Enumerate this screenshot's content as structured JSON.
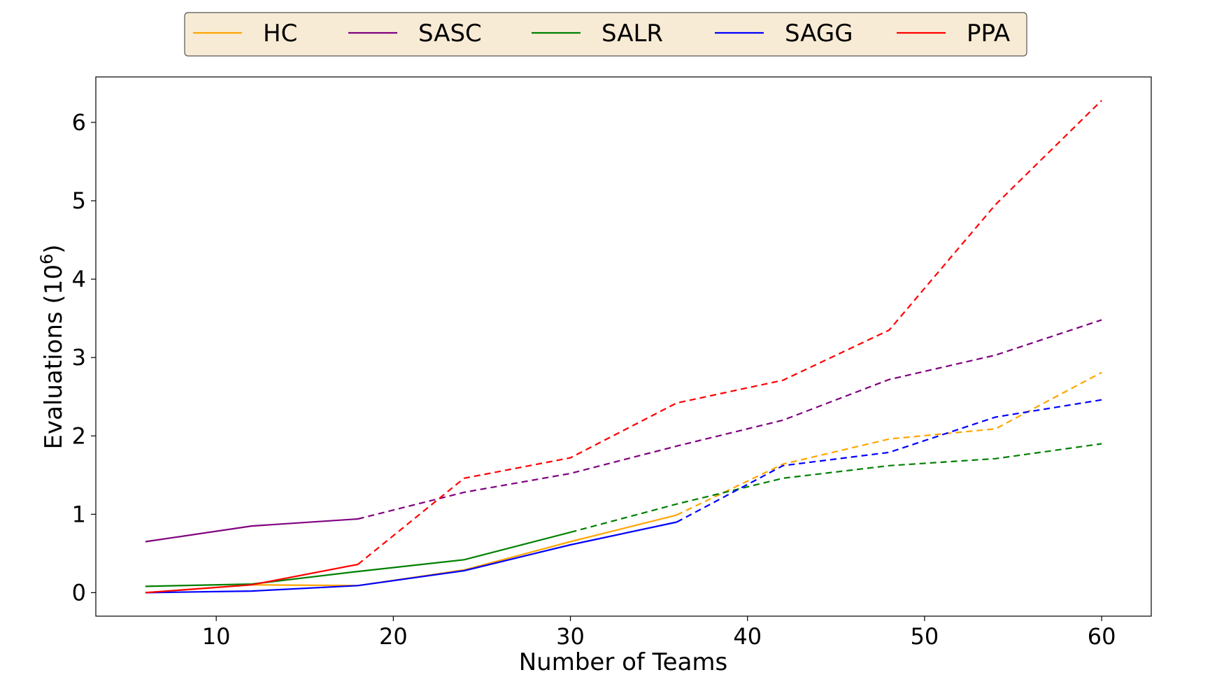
{
  "chart_data": {
    "type": "line",
    "xlabel": "Number of Teams",
    "ylabel_main": "Evaluations (10",
    "ylabel_sup": "6",
    "ylabel_close": ")",
    "xlim": [
      3.2,
      62.8
    ],
    "ylim": [
      -0.3,
      6.58
    ],
    "xticks": [
      10,
      20,
      30,
      40,
      50,
      60
    ],
    "yticks": [
      0,
      1,
      2,
      3,
      4,
      5,
      6
    ],
    "grid": false,
    "legend_placement": "top-center",
    "legend_background": "#f8ebd5",
    "series": [
      {
        "name": "HC",
        "color": "#ffa500",
        "x": [
          6,
          12,
          18,
          24,
          30,
          36,
          42,
          48,
          54,
          60
        ],
        "y": [
          0.0,
          0.1,
          0.09,
          0.29,
          0.65,
          0.99,
          1.64,
          1.96,
          2.09,
          2.81
        ],
        "dashed_from_index": 5
      },
      {
        "name": "SASC",
        "color": "#800080",
        "x": [
          6,
          12,
          18,
          24,
          30,
          36,
          42,
          48,
          54,
          60
        ],
        "y": [
          0.65,
          0.85,
          0.94,
          1.28,
          1.52,
          1.87,
          2.2,
          2.72,
          3.03,
          3.48
        ],
        "dashed_from_index": 2
      },
      {
        "name": "SALR",
        "color": "#008000",
        "x": [
          6,
          12,
          18,
          24,
          30,
          36,
          42,
          48,
          54,
          60
        ],
        "y": [
          0.08,
          0.11,
          0.27,
          0.42,
          0.77,
          1.13,
          1.46,
          1.62,
          1.71,
          1.9
        ],
        "dashed_from_index": 4
      },
      {
        "name": "SAGG",
        "color": "#0000ff",
        "x": [
          6,
          12,
          18,
          24,
          30,
          36,
          42,
          48,
          54,
          60
        ],
        "y": [
          0.0,
          0.02,
          0.09,
          0.28,
          0.61,
          0.9,
          1.62,
          1.79,
          2.24,
          2.46
        ],
        "dashed_from_index": 5
      },
      {
        "name": "PPA",
        "color": "#ff0000",
        "x": [
          6,
          12,
          18,
          24,
          30,
          36,
          42,
          48,
          54,
          60
        ],
        "y": [
          0.0,
          0.1,
          0.36,
          1.46,
          1.72,
          2.42,
          2.71,
          3.35,
          4.95,
          6.28
        ],
        "dashed_from_index": 2
      }
    ]
  }
}
